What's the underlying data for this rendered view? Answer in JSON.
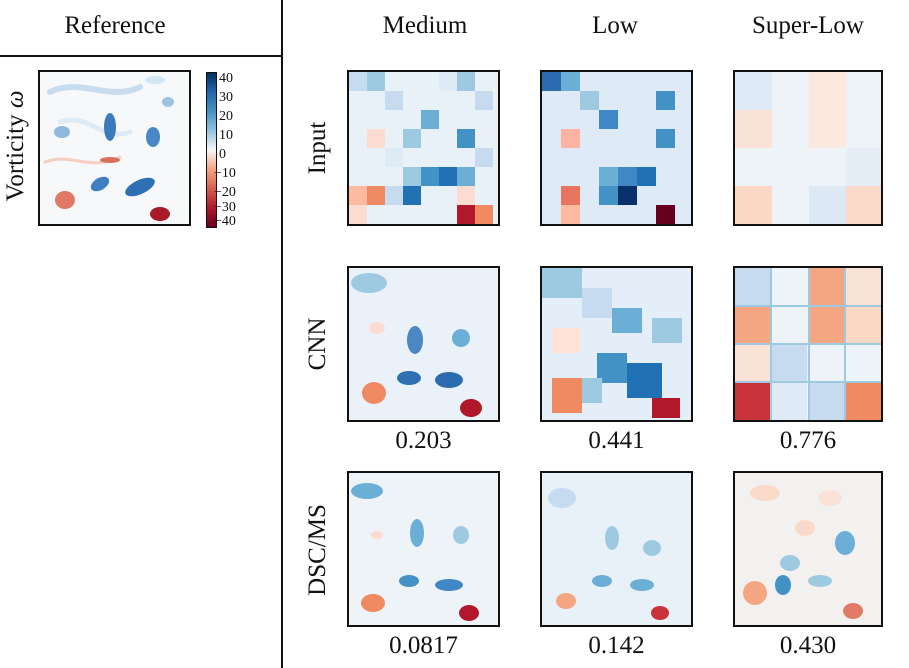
{
  "headers": {
    "reference": "Reference",
    "columns": [
      "Medium",
      "Low",
      "Super-Low"
    ]
  },
  "reference": {
    "label": "Vorticity",
    "symbol": "ω",
    "colorbar_ticks": [
      "40",
      "30",
      "20",
      "10",
      "0",
      "−10",
      "−20",
      "−30",
      "−40"
    ]
  },
  "rows": [
    {
      "label": "Input",
      "values": [
        "",
        "",
        ""
      ]
    },
    {
      "label": "CNN",
      "values": [
        "0.203",
        "0.441",
        "0.776"
      ]
    },
    {
      "label": "DSC/MS",
      "values": [
        "0.0817",
        "0.142",
        "0.430"
      ]
    }
  ],
  "colors": {
    "positive": "#2166ac",
    "negative": "#b2182b",
    "neutral": "#f7f7f7"
  }
}
